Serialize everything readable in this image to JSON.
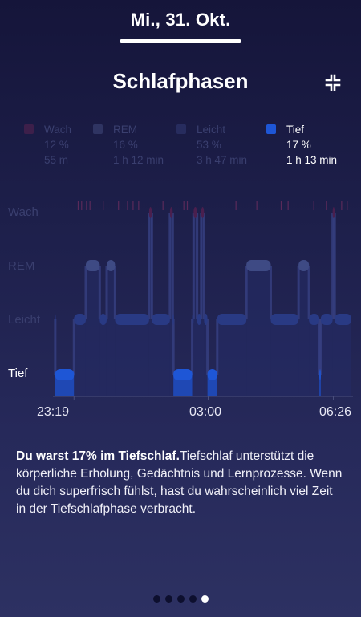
{
  "header": {
    "date": "Mi., 31. Okt."
  },
  "section": {
    "title": "Schlafphasen",
    "collapse_icon": "collapse-icon"
  },
  "legend": [
    {
      "name": "Wach",
      "percent": "12 %",
      "duration": "55 m",
      "color": "#c21f5b",
      "active": false
    },
    {
      "name": "REM",
      "percent": "16 %",
      "duration": "1 h 12 min",
      "color": "#4d5a9a",
      "active": false
    },
    {
      "name": "Leicht",
      "percent": "53 %",
      "duration": "3 h 47 min",
      "color": "#2e3d8c",
      "active": false
    },
    {
      "name": "Tief",
      "percent": "17 %",
      "duration": "1 h 13 min",
      "color": "#1e56d6",
      "active": true
    }
  ],
  "chart_data": {
    "type": "hypnogram",
    "y_levels": [
      "Wach",
      "REM",
      "Leicht",
      "Tief"
    ],
    "highlighted_level": "Tief",
    "x_tick_labels": [
      "23:19",
      "03:00",
      "06:26"
    ],
    "x_range": [
      "23:19",
      "06:26"
    ],
    "segments": [
      {
        "stage": "Leicht",
        "start": "23:19",
        "end": "23:20"
      },
      {
        "stage": "Tief",
        "start": "23:20",
        "end": "23:47"
      },
      {
        "stage": "Leicht",
        "start": "23:47",
        "end": "00:04"
      },
      {
        "stage": "REM",
        "start": "00:04",
        "end": "00:24"
      },
      {
        "stage": "Leicht",
        "start": "00:24",
        "end": "00:34"
      },
      {
        "stage": "REM",
        "start": "00:34",
        "end": "00:46"
      },
      {
        "stage": "Leicht",
        "start": "00:46",
        "end": "01:35"
      },
      {
        "stage": "Wach",
        "start": "01:35",
        "end": "01:39"
      },
      {
        "stage": "Leicht",
        "start": "01:39",
        "end": "02:05"
      },
      {
        "stage": "Wach",
        "start": "02:05",
        "end": "02:09"
      },
      {
        "stage": "Leicht",
        "start": "02:09",
        "end": "02:10"
      },
      {
        "stage": "Tief",
        "start": "02:10",
        "end": "02:37"
      },
      {
        "stage": "Leicht",
        "start": "02:37",
        "end": "02:39"
      },
      {
        "stage": "Wach",
        "start": "02:39",
        "end": "02:44"
      },
      {
        "stage": "Leicht",
        "start": "02:44",
        "end": "02:50"
      },
      {
        "stage": "Wach",
        "start": "02:50",
        "end": "02:54"
      },
      {
        "stage": "Leicht",
        "start": "02:54",
        "end": "02:59"
      },
      {
        "stage": "Tief",
        "start": "02:59",
        "end": "03:13"
      },
      {
        "stage": "Leicht",
        "start": "03:13",
        "end": "03:55"
      },
      {
        "stage": "REM",
        "start": "03:55",
        "end": "04:30"
      },
      {
        "stage": "Leicht",
        "start": "04:30",
        "end": "05:10"
      },
      {
        "stage": "REM",
        "start": "05:10",
        "end": "05:25"
      },
      {
        "stage": "Leicht",
        "start": "05:25",
        "end": "05:40"
      },
      {
        "stage": "Tief",
        "start": "05:40",
        "end": "05:42"
      },
      {
        "stage": "Leicht",
        "start": "05:42",
        "end": "05:59"
      },
      {
        "stage": "Wach",
        "start": "05:59",
        "end": "06:02"
      },
      {
        "stage": "Leicht",
        "start": "06:02",
        "end": "06:26"
      }
    ],
    "wake_ticks": [
      "23:53",
      "23:58",
      "00:05",
      "00:10",
      "00:29",
      "00:51",
      "01:04",
      "01:12",
      "01:20",
      "01:55",
      "02:25",
      "02:30",
      "03:40",
      "04:10",
      "04:45",
      "04:55",
      "05:32",
      "05:50",
      "06:12",
      "06:20"
    ]
  },
  "description": {
    "bold": "Du warst 17% im Tiefschlaf.",
    "text": "Tiefschlaf unterstützt die körperliche Erholung, Gedächtnis und Lernprozesse. Wenn du dich superfrisch fühlst, hast du wahrscheinlich viel Zeit in der Tiefschlafphase verbracht."
  },
  "pager": {
    "total": 5,
    "active_index": 4
  }
}
